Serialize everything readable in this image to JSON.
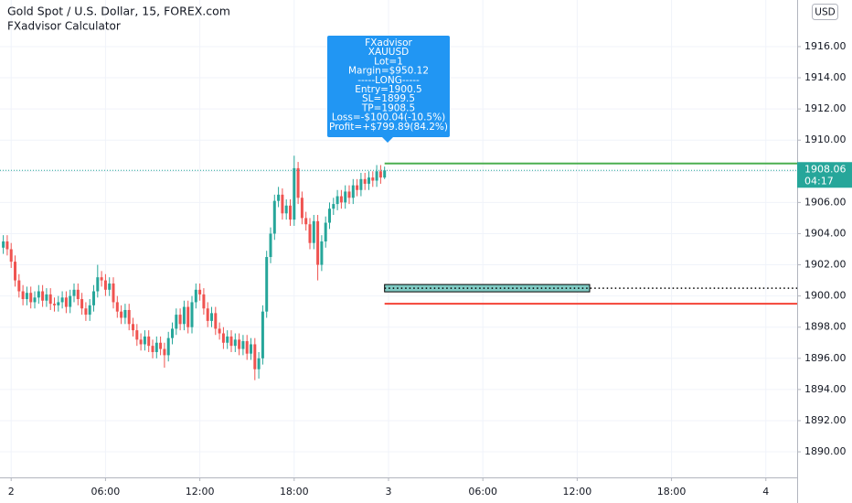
{
  "chart_data": {
    "type": "candlestick",
    "title": "Gold Spot / U.S. Dollar, 15, FOREX.com",
    "subtitle": "FXadvisor Calculator",
    "currency": "USD",
    "up_color": "#26a69a",
    "down_color": "#ef5350",
    "grid": true,
    "xlim": [
      -0.71,
      49.99
    ],
    "ylim": [
      1888.36,
      1918.99
    ],
    "xticks": [
      {
        "value": 0,
        "label": "2"
      },
      {
        "value": 6,
        "label": "06:00"
      },
      {
        "value": 12,
        "label": "12:00"
      },
      {
        "value": 18,
        "label": "18:00"
      },
      {
        "value": 24,
        "label": "3"
      },
      {
        "value": 30,
        "label": "06:00"
      },
      {
        "value": 36,
        "label": "12:00"
      },
      {
        "value": 42,
        "label": "18:00"
      },
      {
        "value": 48,
        "label": "4"
      }
    ],
    "yticks": [
      {
        "value": 1890,
        "label": "1890.00"
      },
      {
        "value": 1892,
        "label": "1892.00"
      },
      {
        "value": 1894,
        "label": "1894.00"
      },
      {
        "value": 1896,
        "label": "1896.00"
      },
      {
        "value": 1898,
        "label": "1898.00"
      },
      {
        "value": 1900,
        "label": "1900.00"
      },
      {
        "value": 1902,
        "label": "1902.00"
      },
      {
        "value": 1904,
        "label": "1904.00"
      },
      {
        "value": 1906,
        "label": "1906.00"
      },
      {
        "value": 1908,
        "label": "1908.00"
      },
      {
        "value": 1910,
        "label": "1910.00"
      },
      {
        "value": 1912,
        "label": "1912.00"
      },
      {
        "value": 1914,
        "label": "1914.00"
      },
      {
        "value": 1916,
        "label": "1916.00"
      }
    ],
    "x": [
      -0.5,
      -0.25,
      0,
      0.25,
      0.5,
      0.75,
      1,
      1.25,
      1.5,
      1.75,
      2,
      2.25,
      2.5,
      2.75,
      3,
      3.25,
      3.5,
      3.75,
      4,
      4.25,
      4.5,
      4.75,
      5,
      5.25,
      5.5,
      5.75,
      6,
      6.25,
      6.5,
      6.75,
      7,
      7.25,
      7.5,
      7.75,
      8,
      8.25,
      8.5,
      8.75,
      9,
      9.25,
      9.5,
      9.75,
      10,
      10.25,
      10.5,
      10.75,
      11,
      11.25,
      11.5,
      11.75,
      12,
      12.25,
      12.5,
      12.75,
      13,
      13.25,
      13.5,
      13.75,
      14,
      14.25,
      14.5,
      14.75,
      15,
      15.25,
      15.5,
      15.75,
      16,
      16.25,
      16.5,
      16.75,
      17,
      17.25,
      17.5,
      17.75,
      18,
      18.25,
      18.5,
      18.75,
      19,
      19.25,
      19.5,
      19.75,
      20,
      20.25,
      20.5,
      20.75,
      21,
      21.25,
      21.5,
      21.75,
      22,
      22.25,
      22.5,
      22.75,
      23,
      23.25,
      23.5,
      23.75
    ],
    "open": [
      1903.1,
      1903.5,
      1903.0,
      1902.2,
      1901.0,
      1900.3,
      1899.8,
      1900.2,
      1899.6,
      1899.9,
      1900.3,
      1899.7,
      1900.1,
      1899.5,
      1899.4,
      1899.6,
      1899.9,
      1899.3,
      1900.0,
      1900.4,
      1899.8,
      1899.2,
      1898.8,
      1899.4,
      1900.3,
      1901.2,
      1901.0,
      1900.4,
      1900.8,
      1899.6,
      1899.0,
      1898.6,
      1899.1,
      1898.2,
      1897.8,
      1897.2,
      1896.9,
      1897.4,
      1896.8,
      1896.4,
      1897.0,
      1896.6,
      1896.2,
      1897.3,
      1897.9,
      1898.8,
      1898.2,
      1899.3,
      1898.0,
      1899.6,
      1900.4,
      1900.1,
      1899.2,
      1898.4,
      1898.9,
      1897.9,
      1897.6,
      1897.0,
      1897.4,
      1896.8,
      1897.2,
      1896.6,
      1897.1,
      1896.3,
      1896.9,
      1895.3,
      1896.0,
      1899.0,
      1902.5,
      1904.0,
      1906.1,
      1906.5,
      1905.3,
      1905.8,
      1904.9,
      1908.2,
      1906.3,
      1905.0,
      1904.6,
      1903.4,
      1904.8,
      1902.0,
      1903.5,
      1904.7,
      1905.6,
      1905.9,
      1906.4,
      1906.0,
      1906.7,
      1906.3,
      1907.1,
      1906.8,
      1907.5,
      1907.2,
      1907.6,
      1907.4,
      1908.0,
      1907.6
    ],
    "high": [
      1903.9,
      1903.9,
      1903.4,
      1902.6,
      1901.4,
      1900.7,
      1900.6,
      1900.6,
      1900.3,
      1900.7,
      1900.7,
      1900.5,
      1900.5,
      1899.9,
      1900.0,
      1900.3,
      1900.3,
      1900.4,
      1900.8,
      1900.8,
      1900.2,
      1899.6,
      1899.8,
      1900.7,
      1902.0,
      1901.6,
      1901.4,
      1901.2,
      1901.2,
      1900.0,
      1899.4,
      1899.5,
      1899.5,
      1898.6,
      1898.2,
      1897.6,
      1897.8,
      1897.8,
      1897.2,
      1897.4,
      1897.4,
      1897.0,
      1897.7,
      1898.3,
      1899.2,
      1899.2,
      1899.7,
      1899.7,
      1900.0,
      1900.8,
      1900.8,
      1900.5,
      1899.6,
      1899.3,
      1899.3,
      1898.3,
      1898.0,
      1897.8,
      1897.8,
      1897.6,
      1897.6,
      1897.5,
      1897.5,
      1897.3,
      1897.3,
      1896.4,
      1899.4,
      1902.9,
      1904.4,
      1906.5,
      1907.0,
      1906.9,
      1906.2,
      1906.2,
      1909.0,
      1908.6,
      1906.7,
      1905.4,
      1905.0,
      1905.2,
      1905.2,
      1903.9,
      1905.1,
      1906.0,
      1906.3,
      1906.8,
      1906.8,
      1907.1,
      1907.1,
      1907.5,
      1907.5,
      1907.9,
      1907.9,
      1908.0,
      1908.0,
      1908.4,
      1908.4,
      1908.3
    ],
    "low": [
      1902.7,
      1902.6,
      1901.8,
      1900.6,
      1899.9,
      1899.4,
      1899.4,
      1899.2,
      1899.2,
      1899.5,
      1899.3,
      1899.3,
      1899.1,
      1899.0,
      1899.0,
      1899.2,
      1898.9,
      1898.9,
      1899.6,
      1899.4,
      1898.8,
      1898.4,
      1898.4,
      1899.0,
      1899.9,
      1900.6,
      1900.0,
      1900.0,
      1899.2,
      1898.6,
      1898.2,
      1898.2,
      1897.8,
      1897.4,
      1896.8,
      1896.5,
      1896.5,
      1896.4,
      1896.0,
      1896.0,
      1896.2,
      1895.4,
      1895.8,
      1896.9,
      1897.5,
      1897.8,
      1897.8,
      1897.6,
      1897.6,
      1899.2,
      1899.7,
      1898.8,
      1898.0,
      1898.0,
      1897.5,
      1897.2,
      1896.6,
      1896.6,
      1896.4,
      1896.4,
      1896.2,
      1896.2,
      1895.9,
      1895.9,
      1894.6,
      1894.7,
      1895.6,
      1898.6,
      1902.1,
      1903.6,
      1905.7,
      1904.9,
      1904.9,
      1904.5,
      1904.5,
      1905.9,
      1904.6,
      1904.2,
      1903.0,
      1903.0,
      1901.0,
      1901.6,
      1903.1,
      1904.3,
      1905.2,
      1905.5,
      1905.6,
      1905.6,
      1905.9,
      1905.9,
      1906.4,
      1906.4,
      1906.8,
      1906.8,
      1907.0,
      1907.0,
      1907.2,
      1907.5
    ],
    "close": [
      1903.5,
      1903.0,
      1902.2,
      1901.0,
      1900.3,
      1899.8,
      1900.2,
      1899.6,
      1899.9,
      1900.3,
      1899.7,
      1900.1,
      1899.5,
      1899.4,
      1899.6,
      1899.9,
      1899.3,
      1900.0,
      1900.4,
      1899.8,
      1899.2,
      1898.8,
      1899.4,
      1900.3,
      1901.2,
      1901.0,
      1900.4,
      1900.8,
      1899.6,
      1899.0,
      1898.6,
      1899.1,
      1898.2,
      1897.8,
      1897.2,
      1896.9,
      1897.4,
      1896.8,
      1896.4,
      1897.0,
      1896.6,
      1896.2,
      1897.3,
      1897.9,
      1898.8,
      1898.2,
      1899.3,
      1898.0,
      1899.6,
      1900.4,
      1900.1,
      1899.2,
      1898.4,
      1898.9,
      1897.9,
      1897.6,
      1897.0,
      1897.4,
      1896.8,
      1897.2,
      1896.6,
      1897.1,
      1896.3,
      1896.9,
      1895.3,
      1896.0,
      1899.0,
      1902.5,
      1904.0,
      1906.1,
      1906.5,
      1905.3,
      1905.8,
      1904.9,
      1908.2,
      1906.3,
      1905.0,
      1904.6,
      1903.4,
      1904.8,
      1902.0,
      1903.5,
      1904.7,
      1905.6,
      1905.9,
      1906.4,
      1906.0,
      1906.7,
      1906.3,
      1907.1,
      1906.8,
      1907.5,
      1907.2,
      1907.6,
      1907.4,
      1908.0,
      1907.6,
      1908.06
    ],
    "last_price": {
      "value": 1908.06,
      "label": "1908.06"
    },
    "countdown": "04:17",
    "trade": {
      "entry": 1900.5,
      "stop_loss": 1899.5,
      "take_profit": 1908.5,
      "tp_color": "#4caf50",
      "sl_color": "#f44336",
      "box_color": "#80cbc4"
    },
    "tooltip": [
      "FXadvisor",
      "XAUUSD",
      "Lot=1",
      "Margin=$950.12",
      "-----LONG-----",
      "Entry=1900.5",
      "SL=1899.5",
      "TP=1908.5",
      "Loss=-$100.04(-10.5%)",
      "Profit=+$799.89(84.2%)"
    ]
  }
}
